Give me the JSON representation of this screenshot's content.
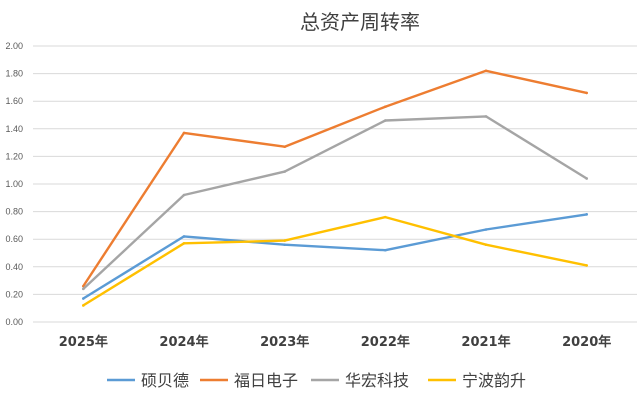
{
  "chart_data": {
    "type": "line",
    "title": "总资产周转率",
    "categories": [
      "2025年",
      "2024年",
      "2023年",
      "2022年",
      "2021年",
      "2020年"
    ],
    "ylim": [
      0,
      2.0
    ],
    "yticks": [
      "0.00",
      "0.20",
      "0.40",
      "0.60",
      "0.80",
      "1.00",
      "1.20",
      "1.40",
      "1.60",
      "1.80",
      "2.00"
    ],
    "grid": true,
    "legend_position": "bottom",
    "series": [
      {
        "name": "硕贝德",
        "color": "#5B9BD5",
        "values": [
          0.17,
          0.62,
          0.56,
          0.52,
          0.67,
          0.78
        ]
      },
      {
        "name": "福日电子",
        "color": "#ED7D31",
        "values": [
          0.26,
          1.37,
          1.27,
          1.56,
          1.82,
          1.66
        ]
      },
      {
        "name": "华宏科技",
        "color": "#A5A5A5",
        "values": [
          0.24,
          0.92,
          1.09,
          1.46,
          1.49,
          1.04
        ]
      },
      {
        "name": "宁波韵升",
        "color": "#FFC000",
        "values": [
          0.12,
          0.57,
          0.59,
          0.76,
          0.56,
          0.41
        ]
      }
    ]
  }
}
